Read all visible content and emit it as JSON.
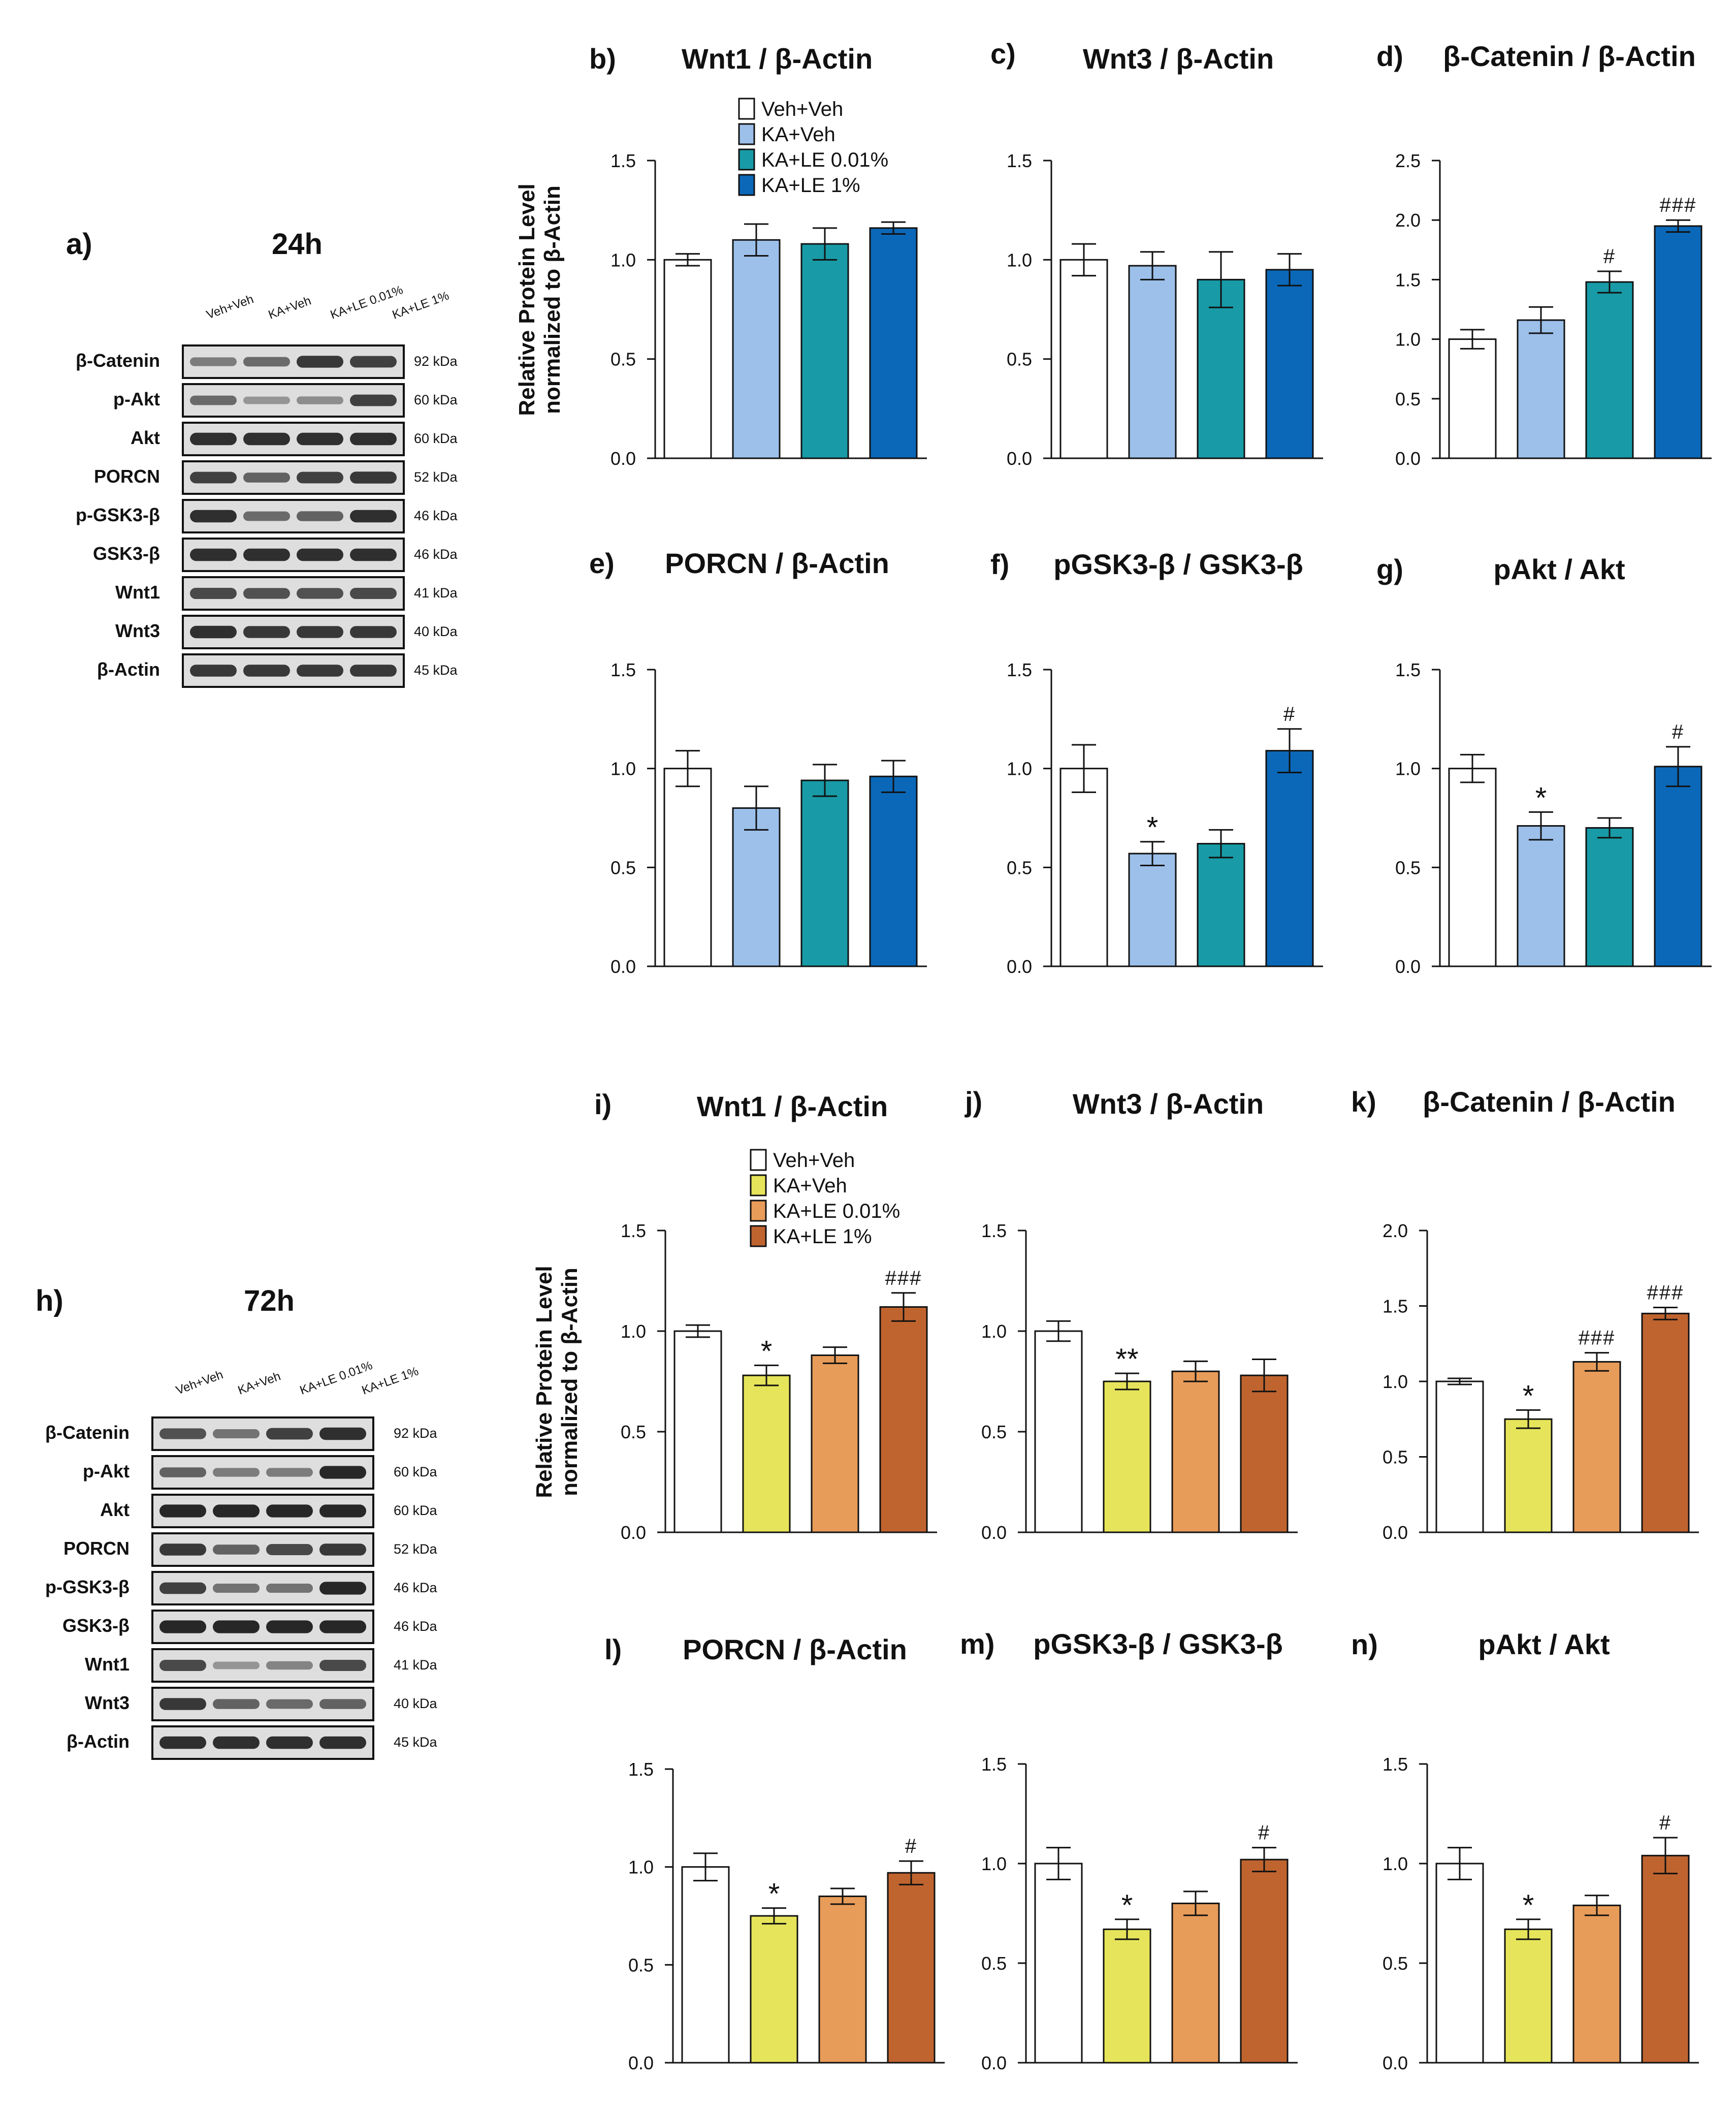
{
  "colors": {
    "veh_veh": "#ffffff",
    "blue": [
      "#ffffff",
      "#9cc0ea",
      "#189ba6",
      "#0b68b8"
    ],
    "orange": [
      "#ffffff",
      "#e6e45a",
      "#e89c59",
      "#c0642f"
    ]
  },
  "blots": [
    {
      "panel_label": "a)",
      "time": "24h",
      "lane_labels": [
        "Veh+Veh",
        "KA+Veh",
        "KA+LE 0.01%",
        "KA+LE 1%"
      ],
      "proteins": [
        "β-Catenin",
        "p-Akt",
        "Akt",
        "PORCN",
        "p-GSK3-β",
        "GSK3-β",
        "Wnt1",
        "Wnt3",
        "β-Actin"
      ],
      "kda": [
        "92 kDa",
        "60 kDa",
        "60 kDa",
        "52 kDa",
        "46 kDa",
        "46 kDa",
        "41 kDa",
        "40 kDa",
        "45 kDa"
      ],
      "band_strength": [
        [
          0.45,
          0.55,
          0.85,
          0.8
        ],
        [
          0.55,
          0.3,
          0.35,
          0.8
        ],
        [
          0.9,
          0.9,
          0.9,
          0.9
        ],
        [
          0.8,
          0.6,
          0.8,
          0.85
        ],
        [
          0.9,
          0.55,
          0.6,
          0.9
        ],
        [
          0.9,
          0.9,
          0.9,
          0.9
        ],
        [
          0.75,
          0.7,
          0.7,
          0.75
        ],
        [
          0.9,
          0.85,
          0.85,
          0.85
        ],
        [
          0.85,
          0.85,
          0.85,
          0.85
        ]
      ]
    },
    {
      "panel_label": "h)",
      "time": "72h",
      "lane_labels": [
        "Veh+Veh",
        "KA+Veh",
        "KA+LE 0.01%",
        "KA+LE 1%"
      ],
      "proteins": [
        "β-Catenin",
        "p-Akt",
        "Akt",
        "PORCN",
        "p-GSK3-β",
        "GSK3-β",
        "Wnt1",
        "Wnt3",
        "β-Actin"
      ],
      "kda": [
        "92 kDa",
        "60 kDa",
        "60 kDa",
        "52 kDa",
        "46 kDa",
        "46 kDa",
        "41 kDa",
        "40 kDa",
        "45 kDa"
      ],
      "band_strength": [
        [
          0.7,
          0.5,
          0.8,
          0.9
        ],
        [
          0.6,
          0.45,
          0.45,
          0.95
        ],
        [
          0.95,
          0.95,
          0.95,
          0.95
        ],
        [
          0.85,
          0.6,
          0.75,
          0.85
        ],
        [
          0.8,
          0.5,
          0.5,
          0.95
        ],
        [
          0.95,
          0.95,
          0.95,
          0.95
        ],
        [
          0.75,
          0.3,
          0.4,
          0.75
        ],
        [
          0.85,
          0.6,
          0.55,
          0.6
        ],
        [
          0.9,
          0.9,
          0.9,
          0.9
        ]
      ]
    }
  ],
  "legends": {
    "blue": [
      "Veh+Veh",
      "KA+Veh",
      "KA+LE 0.01%",
      "KA+LE 1%"
    ],
    "orange": [
      "Veh+Veh",
      "KA+Veh",
      "KA+LE 0.01%",
      "KA+LE 1%"
    ]
  },
  "ylabel": [
    "Relative Protein Level",
    "normalized to β-Actin"
  ],
  "chart_data": [
    {
      "type": "bar",
      "panel": "b)",
      "title": "Wnt1 / β-Actin",
      "palette": "blue",
      "ylim": [
        0,
        1.5
      ],
      "ticks": [
        "0.0",
        "0.5",
        "1.0",
        "1.5"
      ],
      "categories": [
        "Veh+Veh",
        "KA+Veh",
        "KA+LE 0.01%",
        "KA+LE 1%"
      ],
      "values": [
        1.0,
        1.1,
        1.08,
        1.16
      ],
      "errors": [
        0.03,
        0.08,
        0.08,
        0.03
      ],
      "annotations": [
        "",
        "",
        "",
        ""
      ]
    },
    {
      "type": "bar",
      "panel": "c)",
      "title": "Wnt3 / β-Actin",
      "palette": "blue",
      "ylim": [
        0,
        1.5
      ],
      "ticks": [
        "0.0",
        "0.5",
        "1.0",
        "1.5"
      ],
      "categories": [
        "Veh+Veh",
        "KA+Veh",
        "KA+LE 0.01%",
        "KA+LE 1%"
      ],
      "values": [
        1.0,
        0.97,
        0.9,
        0.95
      ],
      "errors": [
        0.08,
        0.07,
        0.14,
        0.08
      ],
      "annotations": [
        "",
        "",
        "",
        ""
      ]
    },
    {
      "type": "bar",
      "panel": "d)",
      "title": "β-Catenin / β-Actin",
      "palette": "blue",
      "ylim": [
        0,
        2.5
      ],
      "ticks": [
        "0.0",
        "0.5",
        "1.0",
        "1.5",
        "2.0",
        "2.5"
      ],
      "categories": [
        "Veh+Veh",
        "KA+Veh",
        "KA+LE 0.01%",
        "KA+LE 1%"
      ],
      "values": [
        1.0,
        1.16,
        1.48,
        1.95
      ],
      "errors": [
        0.08,
        0.11,
        0.09,
        0.05
      ],
      "annotations": [
        "",
        "",
        "#",
        "###"
      ]
    },
    {
      "type": "bar",
      "panel": "e)",
      "title": "PORCN / β-Actin",
      "palette": "blue",
      "ylim": [
        0,
        1.5
      ],
      "ticks": [
        "0.0",
        "0.5",
        "1.0",
        "1.5"
      ],
      "categories": [
        "Veh+Veh",
        "KA+Veh",
        "KA+LE 0.01%",
        "KA+LE 1%"
      ],
      "values": [
        1.0,
        0.8,
        0.94,
        0.96
      ],
      "errors": [
        0.09,
        0.11,
        0.08,
        0.08
      ],
      "annotations": [
        "",
        "",
        "",
        ""
      ]
    },
    {
      "type": "bar",
      "panel": "f)",
      "title": "pGSK3-β / GSK3-β",
      "palette": "blue",
      "ylim": [
        0,
        1.5
      ],
      "ticks": [
        "0.0",
        "0.5",
        "1.0",
        "1.5"
      ],
      "categories": [
        "Veh+Veh",
        "KA+Veh",
        "KA+LE 0.01%",
        "KA+LE 1%"
      ],
      "values": [
        1.0,
        0.57,
        0.62,
        1.09
      ],
      "errors": [
        0.12,
        0.06,
        0.07,
        0.11
      ],
      "annotations": [
        "",
        "*",
        "",
        "#"
      ]
    },
    {
      "type": "bar",
      "panel": "g)",
      "title": "pAkt / Akt",
      "palette": "blue",
      "ylim": [
        0,
        1.5
      ],
      "ticks": [
        "0.0",
        "0.5",
        "1.0",
        "1.5"
      ],
      "categories": [
        "Veh+Veh",
        "KA+Veh",
        "KA+LE 0.01%",
        "KA+LE 1%"
      ],
      "values": [
        1.0,
        0.71,
        0.7,
        1.01
      ],
      "errors": [
        0.07,
        0.07,
        0.05,
        0.1
      ],
      "annotations": [
        "",
        "*",
        "",
        "#"
      ]
    },
    {
      "type": "bar",
      "panel": "i)",
      "title": "Wnt1 / β-Actin",
      "palette": "orange",
      "ylim": [
        0,
        1.5
      ],
      "ticks": [
        "0.0",
        "0.5",
        "1.0",
        "1.5"
      ],
      "categories": [
        "Veh+Veh",
        "KA+Veh",
        "KA+LE 0.01%",
        "KA+LE 1%"
      ],
      "values": [
        1.0,
        0.78,
        0.88,
        1.12
      ],
      "errors": [
        0.03,
        0.05,
        0.04,
        0.07
      ],
      "annotations": [
        "",
        "*",
        "",
        "###"
      ]
    },
    {
      "type": "bar",
      "panel": "j)",
      "title": "Wnt3 / β-Actin",
      "palette": "orange",
      "ylim": [
        0,
        1.5
      ],
      "ticks": [
        "0.0",
        "0.5",
        "1.0",
        "1.5"
      ],
      "categories": [
        "Veh+Veh",
        "KA+Veh",
        "KA+LE 0.01%",
        "KA+LE 1%"
      ],
      "values": [
        1.0,
        0.75,
        0.8,
        0.78
      ],
      "errors": [
        0.05,
        0.04,
        0.05,
        0.08
      ],
      "annotations": [
        "",
        "**",
        "",
        ""
      ]
    },
    {
      "type": "bar",
      "panel": "k)",
      "title": "β-Catenin / β-Actin",
      "palette": "orange",
      "ylim": [
        0,
        2.0
      ],
      "ticks": [
        "0.0",
        "0.5",
        "1.0",
        "1.5",
        "2.0"
      ],
      "categories": [
        "Veh+Veh",
        "KA+Veh",
        "KA+LE 0.01%",
        "KA+LE 1%"
      ],
      "values": [
        1.0,
        0.75,
        1.13,
        1.45
      ],
      "errors": [
        0.02,
        0.06,
        0.06,
        0.04
      ],
      "annotations": [
        "",
        "*",
        "###",
        "###"
      ]
    },
    {
      "type": "bar",
      "panel": "l)",
      "title": "PORCN / β-Actin",
      "palette": "orange",
      "ylim": [
        0,
        1.5
      ],
      "ticks": [
        "0.0",
        "0.5",
        "1.0",
        "1.5"
      ],
      "categories": [
        "Veh+Veh",
        "KA+Veh",
        "KA+LE 0.01%",
        "KA+LE 1%"
      ],
      "values": [
        1.0,
        0.75,
        0.85,
        0.97
      ],
      "errors": [
        0.07,
        0.04,
        0.04,
        0.06
      ],
      "annotations": [
        "",
        "*",
        "",
        "#"
      ]
    },
    {
      "type": "bar",
      "panel": "m)",
      "title": "pGSK3-β / GSK3-β",
      "palette": "orange",
      "ylim": [
        0,
        1.5
      ],
      "ticks": [
        "0.0",
        "0.5",
        "1.0",
        "1.5"
      ],
      "categories": [
        "Veh+Veh",
        "KA+Veh",
        "KA+LE 0.01%",
        "KA+LE 1%"
      ],
      "values": [
        1.0,
        0.67,
        0.8,
        1.02
      ],
      "errors": [
        0.08,
        0.05,
        0.06,
        0.06
      ],
      "annotations": [
        "",
        "*",
        "",
        "#"
      ]
    },
    {
      "type": "bar",
      "panel": "n)",
      "title": "pAkt / Akt",
      "palette": "orange",
      "ylim": [
        0,
        1.5
      ],
      "ticks": [
        "0.0",
        "0.5",
        "1.0",
        "1.5"
      ],
      "categories": [
        "Veh+Veh",
        "KA+Veh",
        "KA+LE 0.01%",
        "KA+LE 1%"
      ],
      "values": [
        1.0,
        0.67,
        0.79,
        1.04
      ],
      "errors": [
        0.08,
        0.05,
        0.05,
        0.09
      ],
      "annotations": [
        "",
        "*",
        "",
        "#"
      ]
    }
  ]
}
